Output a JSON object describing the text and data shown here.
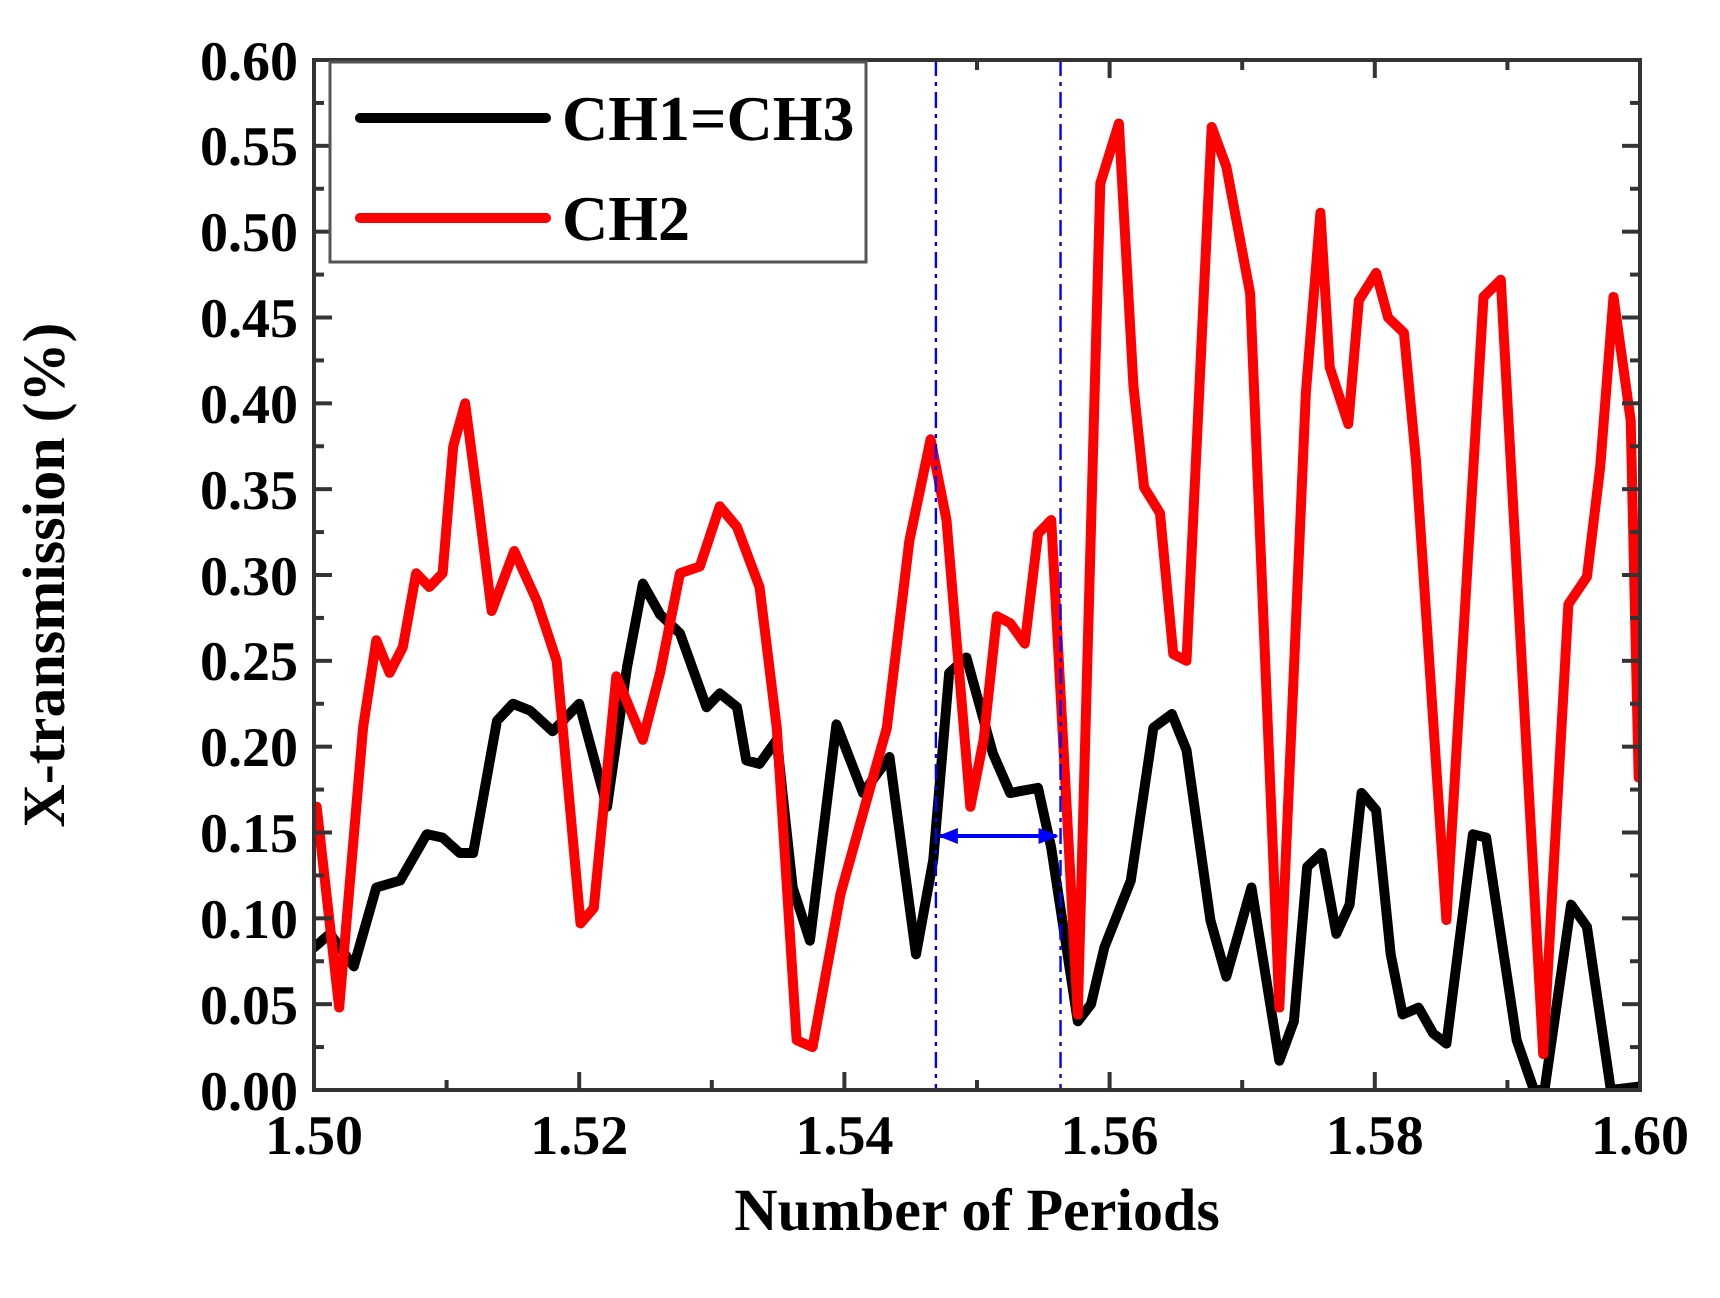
{
  "chart_data": {
    "type": "line",
    "xlabel": "Number of Periods",
    "ylabel": "X-transmission (%)",
    "xlim": [
      1.5,
      1.6
    ],
    "xticks": [
      {
        "value": 1.5,
        "label": "1.50"
      },
      {
        "value": 1.51,
        "label": null
      },
      {
        "value": 1.52,
        "label": "1.52"
      },
      {
        "value": 1.53,
        "label": null
      },
      {
        "value": 1.54,
        "label": "1.54"
      },
      {
        "value": 1.55,
        "label": null
      },
      {
        "value": 1.56,
        "label": "1.56"
      },
      {
        "value": 1.57,
        "label": null
      },
      {
        "value": 1.58,
        "label": "1.58"
      },
      {
        "value": 1.59,
        "label": null
      },
      {
        "value": 1.6,
        "label": "1.60"
      }
    ],
    "ylim": [
      0,
      0.6
    ],
    "yticks": [
      {
        "value": 0,
        "label": "0.00"
      },
      {
        "value": 0.025,
        "label": null
      },
      {
        "value": 0.05,
        "label": "0.05"
      },
      {
        "value": 0.075,
        "label": null
      },
      {
        "value": 0.1,
        "label": "0.10"
      },
      {
        "value": 0.125,
        "label": null
      },
      {
        "value": 0.15,
        "label": "0.15"
      },
      {
        "value": 0.175,
        "label": null
      },
      {
        "value": 0.2,
        "label": "0.20"
      },
      {
        "value": 0.225,
        "label": null
      },
      {
        "value": 0.25,
        "label": "0.25"
      },
      {
        "value": 0.275,
        "label": null
      },
      {
        "value": 0.3,
        "label": "0.30"
      },
      {
        "value": 0.325,
        "label": null
      },
      {
        "value": 0.35,
        "label": "0.35"
      },
      {
        "value": 0.375,
        "label": null
      },
      {
        "value": 0.4,
        "label": "0.40"
      },
      {
        "value": 0.425,
        "label": null
      },
      {
        "value": 0.45,
        "label": "0.45"
      },
      {
        "value": 0.475,
        "label": null
      },
      {
        "value": 0.5,
        "label": "0.50"
      },
      {
        "value": 0.525,
        "label": null
      },
      {
        "value": 0.55,
        "label": "0.55"
      },
      {
        "value": 0.575,
        "label": null
      },
      {
        "value": 0.6,
        "label": "0.60"
      }
    ],
    "grid": false,
    "legend": "top left",
    "line_style": "solid",
    "ref_lines": [
      {
        "axis": "x",
        "value": 1.5469,
        "color": "#0000ff",
        "line_style": "dashed"
      },
      {
        "axis": "x",
        "value": 1.5563,
        "color": "#0000ff",
        "line_style": "dashed"
      }
    ],
    "series": [
      {
        "name": "CH1=CH3",
        "color": "#000000",
        "x": [
          1.5,
          1.5012,
          1.503,
          1.5047,
          1.5065,
          1.5085,
          1.5097,
          1.511,
          1.512,
          1.5138,
          1.515,
          1.5163,
          1.518,
          1.52,
          1.5221,
          1.5236,
          1.5248,
          1.5261,
          1.5276,
          1.5296,
          1.5306,
          1.5319,
          1.5326,
          1.5336,
          1.5349,
          1.5361,
          1.5374,
          1.5394,
          1.5414,
          1.5434,
          1.5454,
          1.5467,
          1.5479,
          1.5492,
          1.5512,
          1.5525,
          1.5546,
          1.5556,
          1.5576,
          1.5586,
          1.5596,
          1.5616,
          1.5633,
          1.5647,
          1.5658,
          1.5676,
          1.5688,
          1.5707,
          1.5728,
          1.5739,
          1.5749,
          1.576,
          1.5771,
          1.5781,
          1.579,
          1.5801,
          1.5812,
          1.5821,
          1.5833,
          1.5844,
          1.5854,
          1.5874,
          1.5884,
          1.5907,
          1.592,
          1.5928,
          1.5948,
          1.596,
          1.5978,
          1.6
        ],
        "values": [
          0.083,
          0.091,
          0.072,
          0.118,
          0.122,
          0.149,
          0.147,
          0.138,
          0.138,
          0.215,
          0.225,
          0.221,
          0.209,
          0.225,
          0.165,
          0.246,
          0.295,
          0.277,
          0.266,
          0.223,
          0.231,
          0.223,
          0.192,
          0.19,
          0.204,
          0.118,
          0.087,
          0.213,
          0.173,
          0.194,
          0.079,
          0.134,
          0.243,
          0.252,
          0.196,
          0.173,
          0.176,
          0.141,
          0.04,
          0.05,
          0.083,
          0.122,
          0.211,
          0.219,
          0.198,
          0.099,
          0.066,
          0.118,
          0.017,
          0.04,
          0.13,
          0.138,
          0.091,
          0.108,
          0.173,
          0.163,
          0.079,
          0.044,
          0.048,
          0.033,
          0.027,
          0.149,
          0.147,
          0.029,
          0,
          0,
          0.108,
          0.095,
          0,
          0.002
        ]
      },
      {
        "name": "CH2",
        "color": "#ff0000",
        "x": [
          1.5002,
          1.5019,
          1.5037,
          1.5047,
          1.5057,
          1.5067,
          1.5077,
          1.5087,
          1.5097,
          1.5105,
          1.5114,
          1.5123,
          1.5134,
          1.5151,
          1.5168,
          1.5183,
          1.5201,
          1.5211,
          1.5228,
          1.5248,
          1.5261,
          1.5276,
          1.5291,
          1.5306,
          1.5319,
          1.5336,
          1.5349,
          1.5364,
          1.5376,
          1.5397,
          1.5432,
          1.5449,
          1.5465,
          1.5477,
          1.5495,
          1.5505,
          1.5515,
          1.5525,
          1.5536,
          1.5546,
          1.5556,
          1.5576,
          1.5593,
          1.5607,
          1.5618,
          1.5626,
          1.5638,
          1.5648,
          1.5658,
          1.5677,
          1.5688,
          1.5706,
          1.5728,
          1.5748,
          1.5759,
          1.5766,
          1.578,
          1.5788,
          1.5801,
          1.581,
          1.5822,
          1.5831,
          1.5854,
          1.5882,
          1.5895,
          1.5927,
          1.5946,
          1.596,
          1.597,
          1.598,
          1.5993,
          1.5999
        ],
        "values": [
          0.165,
          0.048,
          0.211,
          0.262,
          0.243,
          0.258,
          0.301,
          0.293,
          0.301,
          0.375,
          0.4,
          0.347,
          0.279,
          0.314,
          0.285,
          0.25,
          0.097,
          0.106,
          0.241,
          0.204,
          0.243,
          0.301,
          0.305,
          0.34,
          0.328,
          0.293,
          0.211,
          0.029,
          0.025,
          0.114,
          0.211,
          0.32,
          0.379,
          0.332,
          0.165,
          0.204,
          0.276,
          0.272,
          0.26,
          0.324,
          0.332,
          0.044,
          0.528,
          0.563,
          0.41,
          0.351,
          0.336,
          0.254,
          0.25,
          0.561,
          0.538,
          0.464,
          0.048,
          0.406,
          0.511,
          0.421,
          0.388,
          0.46,
          0.476,
          0.45,
          0.441,
          0.367,
          0.099,
          0.462,
          0.472,
          0.021,
          0.283,
          0.299,
          0.363,
          0.462,
          0.39,
          0.182
        ]
      }
    ]
  }
}
